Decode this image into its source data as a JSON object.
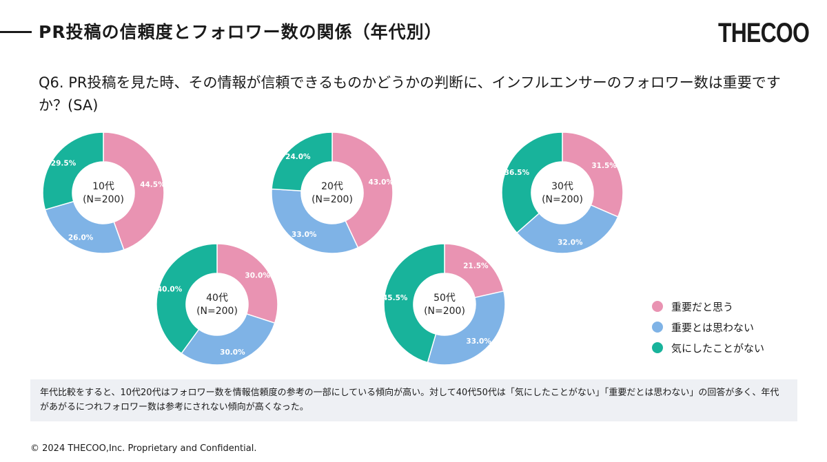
{
  "header": {
    "title": "PR投稿の信頼度とフォロワー数の関係（年代別）",
    "logo": "THECOO"
  },
  "question": "Q6. PR投稿を見た時、その情報が信頼できるものかどうかの判断に、インフルエンサーのフォロワー数は重要ですか？(SA)",
  "colors": {
    "important": "#e993b2",
    "not_important": "#7fb3e6",
    "dont_care": "#18b39b"
  },
  "chart_data": {
    "type": "pie",
    "variant": "donut",
    "legend_position": "right",
    "categories": [
      "重要だと思う",
      "重要とは思わない",
      "気にしたことがない"
    ],
    "series": [
      {
        "name": "10代",
        "n_label": "(N=200)",
        "values": [
          44.5,
          26.0,
          29.5
        ],
        "labels": [
          "44.5%",
          "26.0%",
          "29.5%"
        ]
      },
      {
        "name": "20代",
        "n_label": "(N=200)",
        "values": [
          43.0,
          33.0,
          24.0
        ],
        "labels": [
          "43.0%",
          "33.0%",
          "24.0%"
        ]
      },
      {
        "name": "30代",
        "n_label": "(N=200)",
        "values": [
          31.5,
          32.0,
          36.5
        ],
        "labels": [
          "31.5%",
          "32.0%",
          "36.5%"
        ]
      },
      {
        "name": "40代",
        "n_label": "(N=200)",
        "values": [
          30.0,
          30.0,
          40.0
        ],
        "labels": [
          "30.0%",
          "30.0%",
          "40.0%"
        ]
      },
      {
        "name": "50代",
        "n_label": "(N=200)",
        "values": [
          21.5,
          33.0,
          45.5
        ],
        "labels": [
          "21.5%",
          "33.0%",
          "45.5%"
        ]
      }
    ]
  },
  "legend": {
    "items": [
      {
        "label": "重要だと思う",
        "color": "#e993b2"
      },
      {
        "label": "重要とは思わない",
        "color": "#7fb3e6"
      },
      {
        "label": "気にしたことがない",
        "color": "#18b39b"
      }
    ]
  },
  "summary": "年代比較をすると、10代20代はフォロワー数を情報信頼度の参考の一部にしている傾向が高い。対して40代50代は「気にしたことがない」「重要だとは思わない」の回答が多く、年代があがるにつれフォロワー数は参考にされない傾向が高くなった。",
  "footer": "© 2024 THECOO,Inc. Proprietary and Confidential."
}
